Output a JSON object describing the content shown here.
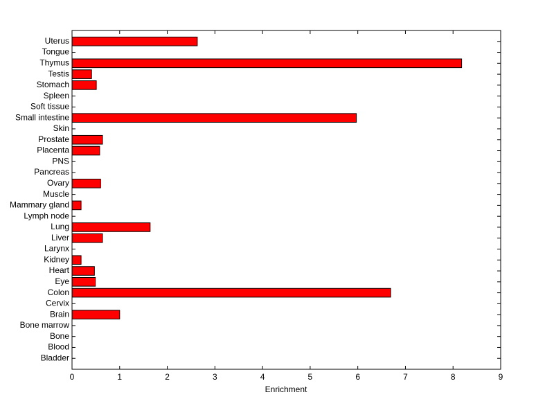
{
  "chart_data": {
    "type": "barh",
    "xlabel": "Enrichment",
    "categories": [
      "Bladder",
      "Blood",
      "Bone",
      "Bone marrow",
      "Brain",
      "Cervix",
      "Colon",
      "Eye",
      "Heart",
      "Kidney",
      "Larynx",
      "Liver",
      "Lung",
      "Lymph node",
      "Mammary gland",
      "Muscle",
      "Ovary",
      "Pancreas",
      "PNS",
      "Placenta",
      "Prostate",
      "Skin",
      "Small intestine",
      "Soft tissue",
      "Spleen",
      "Stomach",
      "Testis",
      "Thymus",
      "Tongue",
      "Uterus"
    ],
    "values": [
      0,
      0,
      0,
      0,
      1.0,
      0,
      6.69,
      0.49,
      0.47,
      0.19,
      0,
      0.64,
      1.64,
      0,
      0.19,
      0,
      0.6,
      0,
      0,
      0.58,
      0.64,
      0,
      5.97,
      0,
      0,
      0.51,
      0.41,
      8.18,
      0,
      2.63
    ],
    "color": "#ff0000",
    "xlim": [
      0,
      9
    ],
    "xticks": [
      0,
      1,
      2,
      3,
      4,
      5,
      6,
      7,
      8,
      9
    ]
  }
}
